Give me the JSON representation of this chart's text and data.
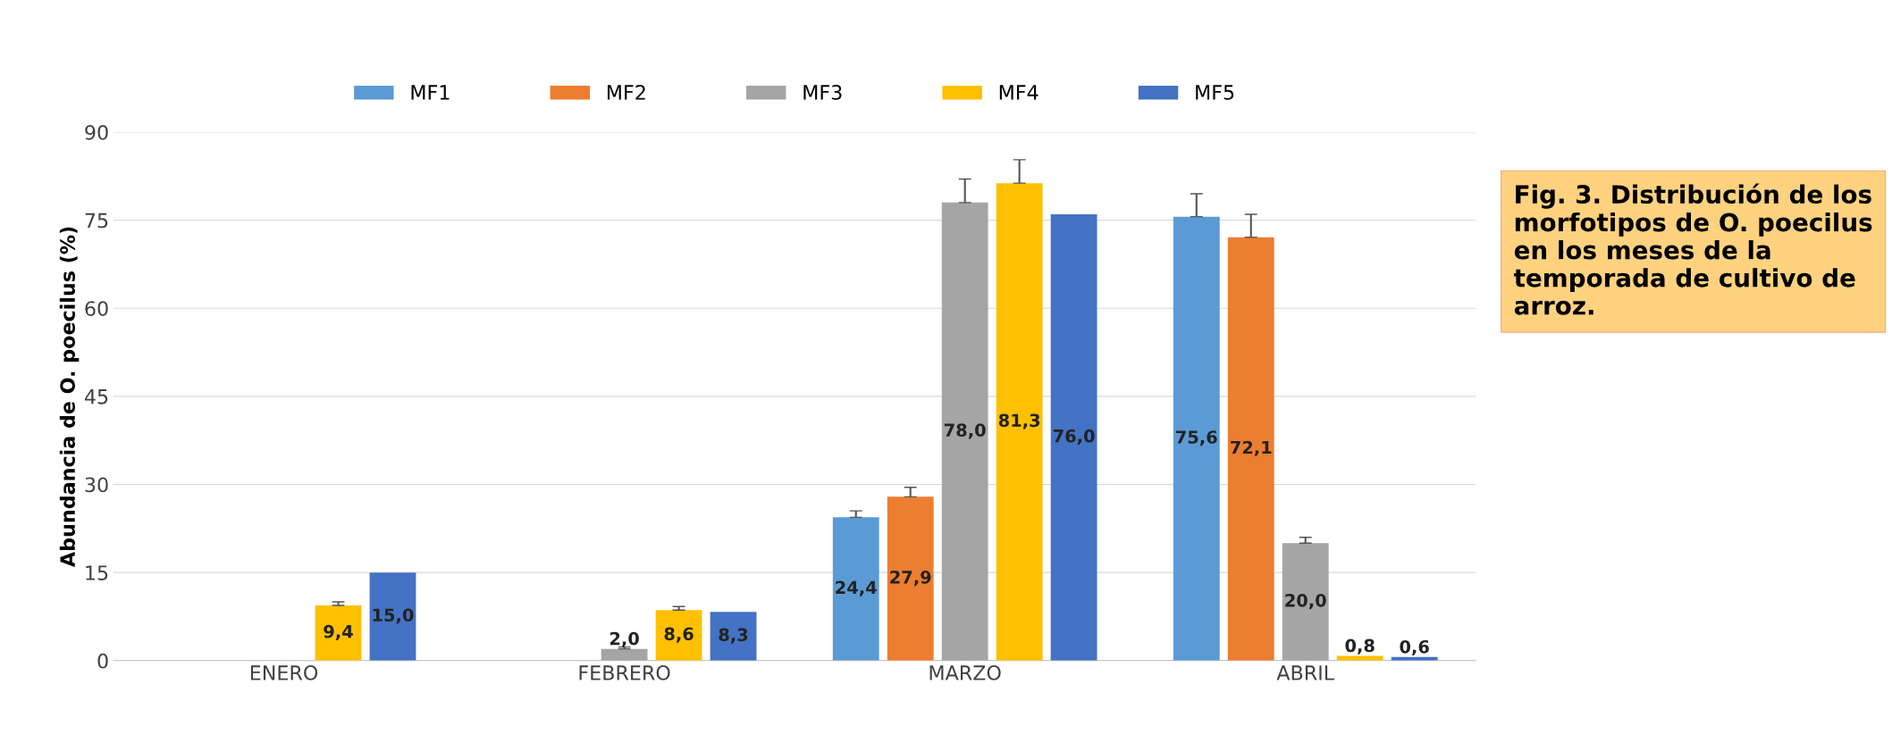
{
  "chart_data": {
    "type": "bar",
    "ylabel": "Abundancia de O. poecilus (%)",
    "categories": [
      "ENERO",
      "FEBRERO",
      "MARZO",
      "ABRIL"
    ],
    "series": [
      {
        "name": "MF1",
        "color": "#5b9bd5",
        "values": [
          0,
          0,
          24.4,
          75.6
        ],
        "errors": [
          null,
          null,
          [
            24.4,
            25.5
          ],
          [
            75.6,
            79.5
          ]
        ],
        "value_labels": [
          null,
          null,
          "24,4",
          "75,6"
        ]
      },
      {
        "name": "MF2",
        "color": "#ed7d31",
        "values": [
          0,
          0,
          27.9,
          72.1
        ],
        "errors": [
          null,
          null,
          [
            27.9,
            29.5
          ],
          [
            72.1,
            76.0
          ]
        ],
        "value_labels": [
          null,
          null,
          "27,9",
          "72,1"
        ]
      },
      {
        "name": "MF3",
        "color": "#a5a5a5",
        "values": [
          0,
          2.0,
          78.0,
          20.0
        ],
        "errors": [
          null,
          [
            2.0,
            2.3
          ],
          [
            78.0,
            82.0
          ],
          [
            20.0,
            21.0
          ]
        ],
        "value_labels": [
          null,
          "2,0",
          "78,0",
          "20,0"
        ]
      },
      {
        "name": "MF4",
        "color": "#ffc000",
        "values": [
          9.4,
          8.6,
          81.3,
          0.8
        ],
        "errors": [
          [
            9.4,
            10.0
          ],
          [
            8.6,
            9.2
          ],
          [
            81.3,
            85.3
          ],
          null
        ],
        "value_labels": [
          "9,4",
          "8,6",
          "81,3",
          "0,8"
        ]
      },
      {
        "name": "MF5",
        "color": "#4472c4",
        "values": [
          15.0,
          8.3,
          76.0,
          0.6
        ],
        "value_labels": [
          "15,0",
          "8,3",
          "76,0",
          "0,6"
        ]
      }
    ],
    "ylim": [
      0,
      90
    ],
    "yticks": [
      0,
      15,
      30,
      45,
      60,
      75,
      90
    ],
    "grid": "y",
    "legend": "top",
    "annotations": [
      "Fig. 3. Distribución de los morfotipos de O. poecilus en los meses de la temporada de cultivo de arroz."
    ]
  }
}
